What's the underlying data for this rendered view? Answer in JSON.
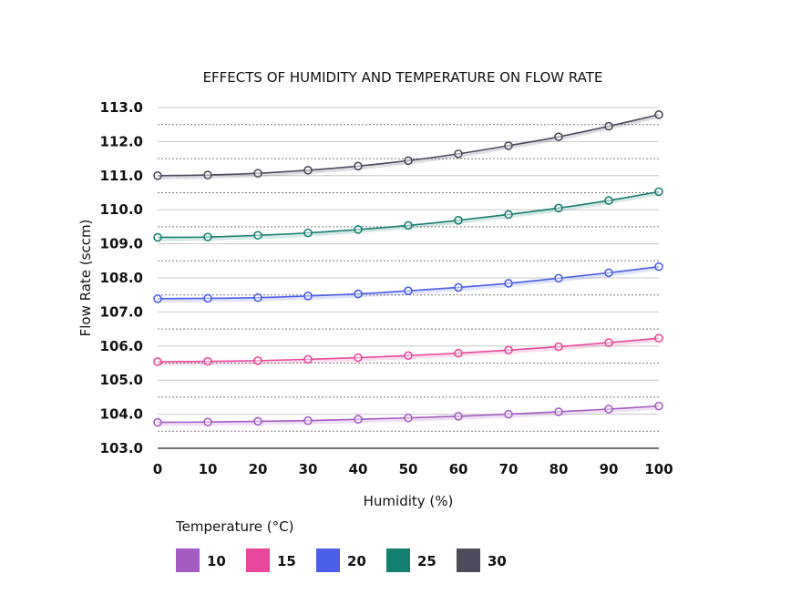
{
  "chart_data": {
    "type": "line",
    "title": "EFFECTS OF HUMIDITY AND TEMPERATURE ON FLOW RATE",
    "xlabel": "Humidity (%)",
    "ylabel": "Flow Rate (sccm)",
    "xlim": [
      0,
      100
    ],
    "ylim": [
      103.0,
      113.0
    ],
    "x_ticks": [
      0,
      10,
      20,
      30,
      40,
      50,
      60,
      70,
      80,
      90,
      100
    ],
    "y_ticks": [
      103.0,
      104.0,
      105.0,
      106.0,
      107.0,
      108.0,
      109.0,
      110.0,
      111.0,
      112.0,
      113.0
    ],
    "y_minor_dotted": [
      103.5,
      104.5,
      105.5,
      106.5,
      107.5,
      108.5,
      109.5,
      110.5,
      111.5,
      112.5
    ],
    "grid": true,
    "legend": {
      "title": "Temperature (°C)",
      "placement": "bottom"
    },
    "x": [
      0,
      10,
      20,
      30,
      40,
      50,
      60,
      70,
      80,
      90,
      100
    ],
    "series": [
      {
        "name": "10",
        "color": "#a45bc2",
        "values": [
          103.76,
          103.77,
          103.79,
          103.81,
          103.85,
          103.89,
          103.94,
          104.0,
          104.07,
          104.15,
          104.24
        ]
      },
      {
        "name": "15",
        "color": "#e8479a",
        "values": [
          105.54,
          105.55,
          105.57,
          105.61,
          105.66,
          105.72,
          105.79,
          105.88,
          105.98,
          106.1,
          106.23
        ]
      },
      {
        "name": "20",
        "color": "#4b5ee8",
        "values": [
          107.39,
          107.4,
          107.42,
          107.47,
          107.53,
          107.62,
          107.72,
          107.84,
          107.99,
          108.15,
          108.33
        ]
      },
      {
        "name": "25",
        "color": "#157f70",
        "values": [
          109.19,
          109.2,
          109.25,
          109.32,
          109.42,
          109.54,
          109.69,
          109.86,
          110.05,
          110.27,
          110.53
        ]
      },
      {
        "name": "30",
        "color": "#4d4c5b",
        "values": [
          111.0,
          111.02,
          111.07,
          111.16,
          111.28,
          111.44,
          111.64,
          111.88,
          112.14,
          112.45,
          112.79
        ]
      }
    ]
  }
}
